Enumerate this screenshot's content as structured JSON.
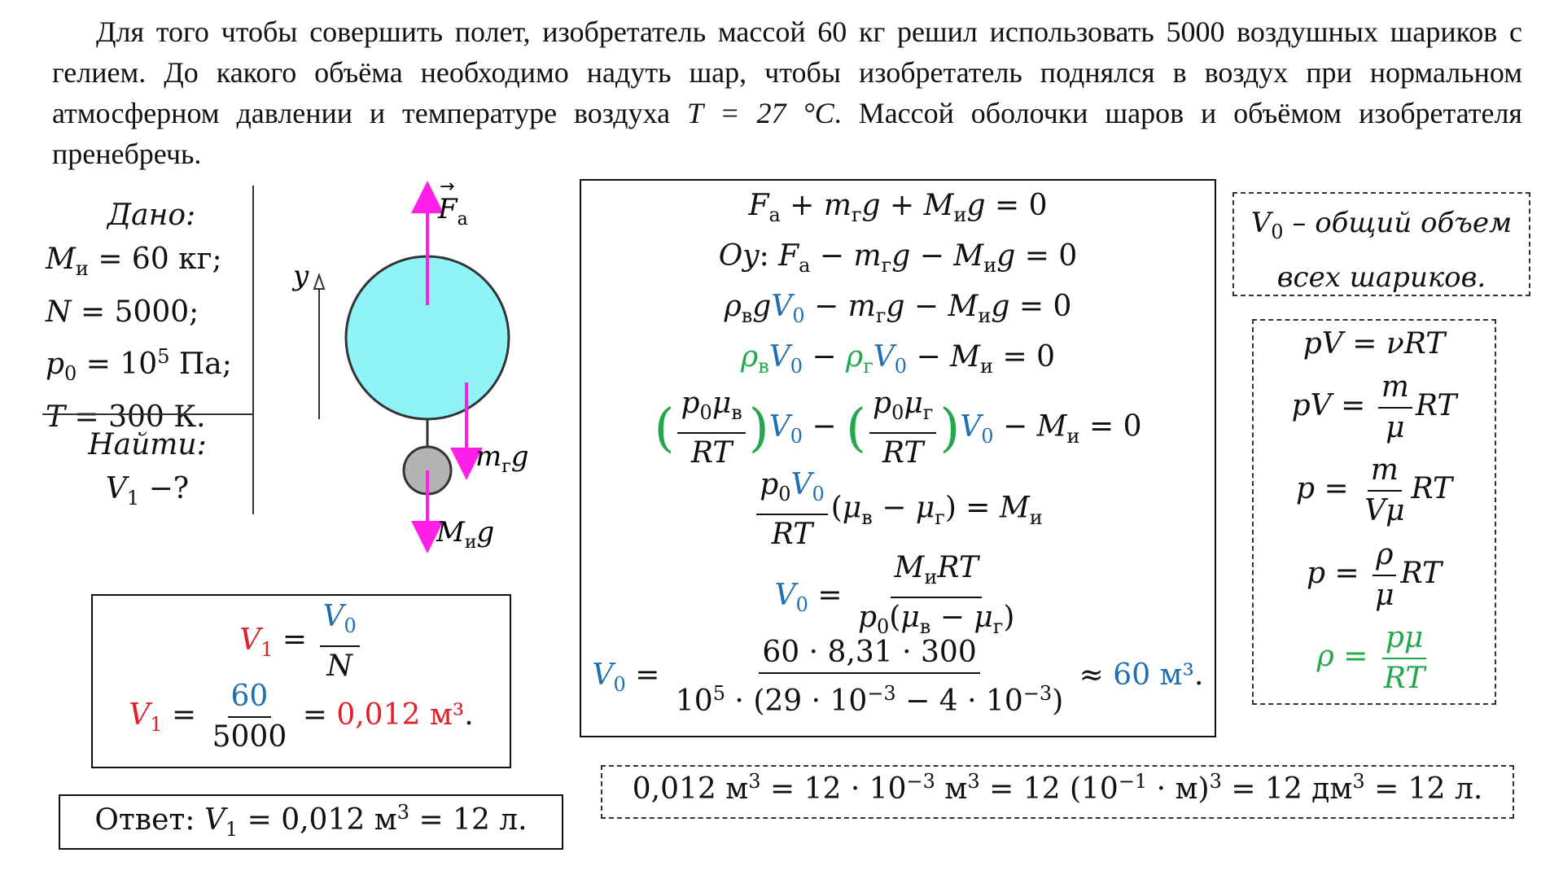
{
  "problem": {
    "before_T": "Для того чтобы совершить полет, изобретатель массой 60 кг решил использовать 5000 воздушных шариков с гелием. До какого объёма необходимо надуть шар, чтобы изобретатель поднялся в воздух при нормальном атмосферном давлении и температуре воздуха ",
    "T_expr": "T = 27 °C",
    "after_T": ". Массой оболочки шаров и объёмом изобретателя пренебречь."
  },
  "given": {
    "title": "Дано:",
    "items": [
      "Mи = 60 кг;",
      "N = 5000;",
      "p0 = 10^5 Па;",
      "T = 300 К."
    ],
    "find_title": "Найти:",
    "find": "V1 −?"
  },
  "diagram": {
    "force_arch": "Fа",
    "force_helium": "mгg",
    "force_inventor": "Mиg",
    "axis": "y",
    "balloon_color": "#8ff4f8",
    "weight_color": "#b3b3b3",
    "arrow_color": "#ff1fe6"
  },
  "solution": {
    "lines": [
      "Fа + mгg + Mиg = 0",
      "Oy: Fа − mгg − Mиg = 0",
      "ρвgV0 − mгg − Mиg = 0",
      "ρвV0 − ρгV0 − Mи = 0",
      "(p0μв/RT)V0 − (p0μг/RT)V0 − Mи = 0",
      "(p0V0/RT)(μв − μг) = Mи",
      "V0 = MиRT / p0(μв − μг)",
      "V0 = 60·8,31·300 / 10^5·(29·10^−3 − 4·10^−3) ≈ 60 м3."
    ],
    "result_value": "60 м³"
  },
  "note": {
    "line1": "V0 – общий объем",
    "line2": "всех шариков."
  },
  "formulas": {
    "f1": "pV = νRT",
    "f2": "pV = (m/μ)RT",
    "f3": "p = (m/Vμ)RT",
    "f4": "p = (ρ/μ)RT",
    "f5": "ρ = pμ/RT"
  },
  "v1_box": {
    "line1": "V1 = V0/N",
    "line2": "V1 = 60/5000 = 0,012 м3.",
    "num": "60",
    "den": "5000",
    "result": "0,012 м³"
  },
  "answer": {
    "label": "Ответ:",
    "expr": "V1 = 0,012 м3 = 12 л."
  },
  "conversion": "0,012 м3 = 12 · 10^−3 м3 = 12 (10^−1 · м)3 = 12 дм3 = 12 л."
}
